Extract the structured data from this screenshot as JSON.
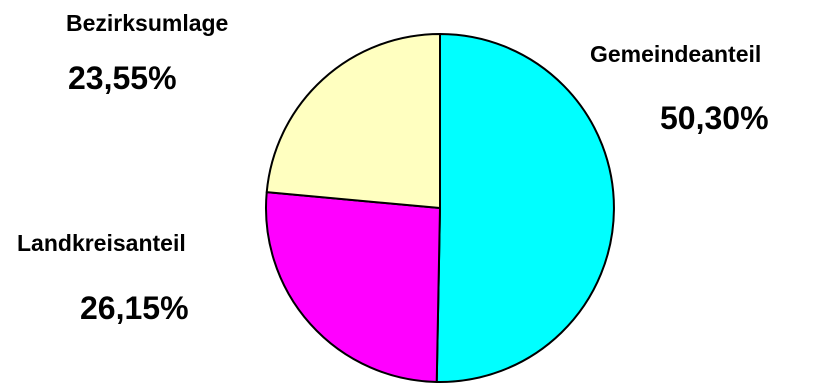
{
  "chart_data": {
    "type": "pie",
    "slices": [
      {
        "label": "Gemeindeanteil",
        "value": 50.3,
        "value_label": "50,30%",
        "color": "#00FFFF"
      },
      {
        "label": "Landkreisanteil",
        "value": 26.15,
        "value_label": "26,15%",
        "color": "#FF00FF"
      },
      {
        "label": "Bezirksumlage",
        "value": 23.55,
        "value_label": "23,55%",
        "color": "#FFFFC0"
      }
    ],
    "start_angle_deg": 0,
    "direction": "clockwise",
    "legend": "none",
    "outline_color": "#000000"
  }
}
